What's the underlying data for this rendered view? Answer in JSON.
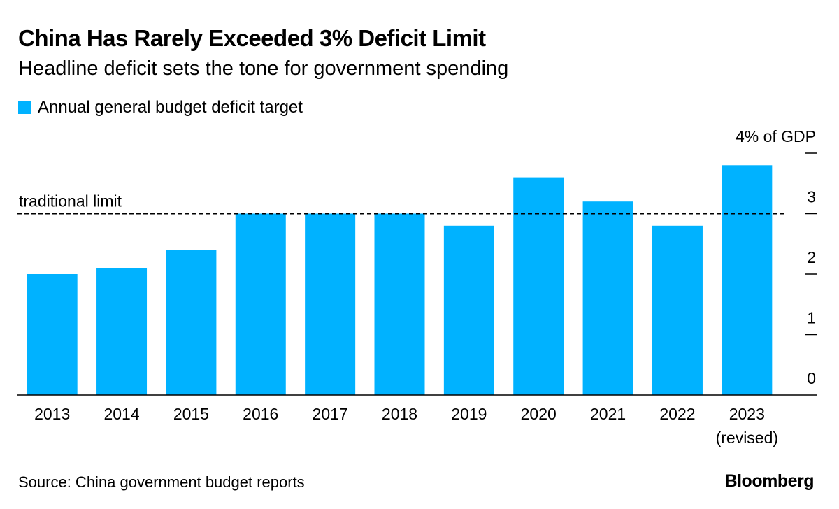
{
  "header": {
    "title": "China Has Rarely Exceeded 3% Deficit Limit",
    "subtitle": "Headline deficit sets the tone for government spending"
  },
  "footer": {
    "source": "Source: China government budget reports",
    "brand": "Bloomberg"
  },
  "colors": {
    "bar": "#00b2ff",
    "text": "#000000",
    "axis": "#000000"
  },
  "chart_data": {
    "type": "bar",
    "categories": [
      "2013",
      "2014",
      "2015",
      "2016",
      "2017",
      "2018",
      "2019",
      "2020",
      "2021",
      "2022",
      "2023"
    ],
    "category_sublabels": [
      "",
      "",
      "",
      "",
      "",
      "",
      "",
      "",
      "",
      "",
      "(revised)"
    ],
    "series": [
      {
        "name": "Annual general budget deficit target",
        "values": [
          2.0,
          2.1,
          2.4,
          3.0,
          3.0,
          3.0,
          2.8,
          3.6,
          3.2,
          2.8,
          3.8
        ]
      }
    ],
    "ylim": [
      0,
      4
    ],
    "yticks": [
      0,
      1,
      2,
      3,
      4
    ],
    "ytick_labels": [
      "0",
      "1",
      "2",
      "3",
      "4% of GDP"
    ],
    "y_axis_position": "right",
    "reference_line": {
      "value": 3,
      "label": "traditional limit",
      "style": "dashed"
    },
    "grid": false,
    "legend_position": "top-left"
  }
}
